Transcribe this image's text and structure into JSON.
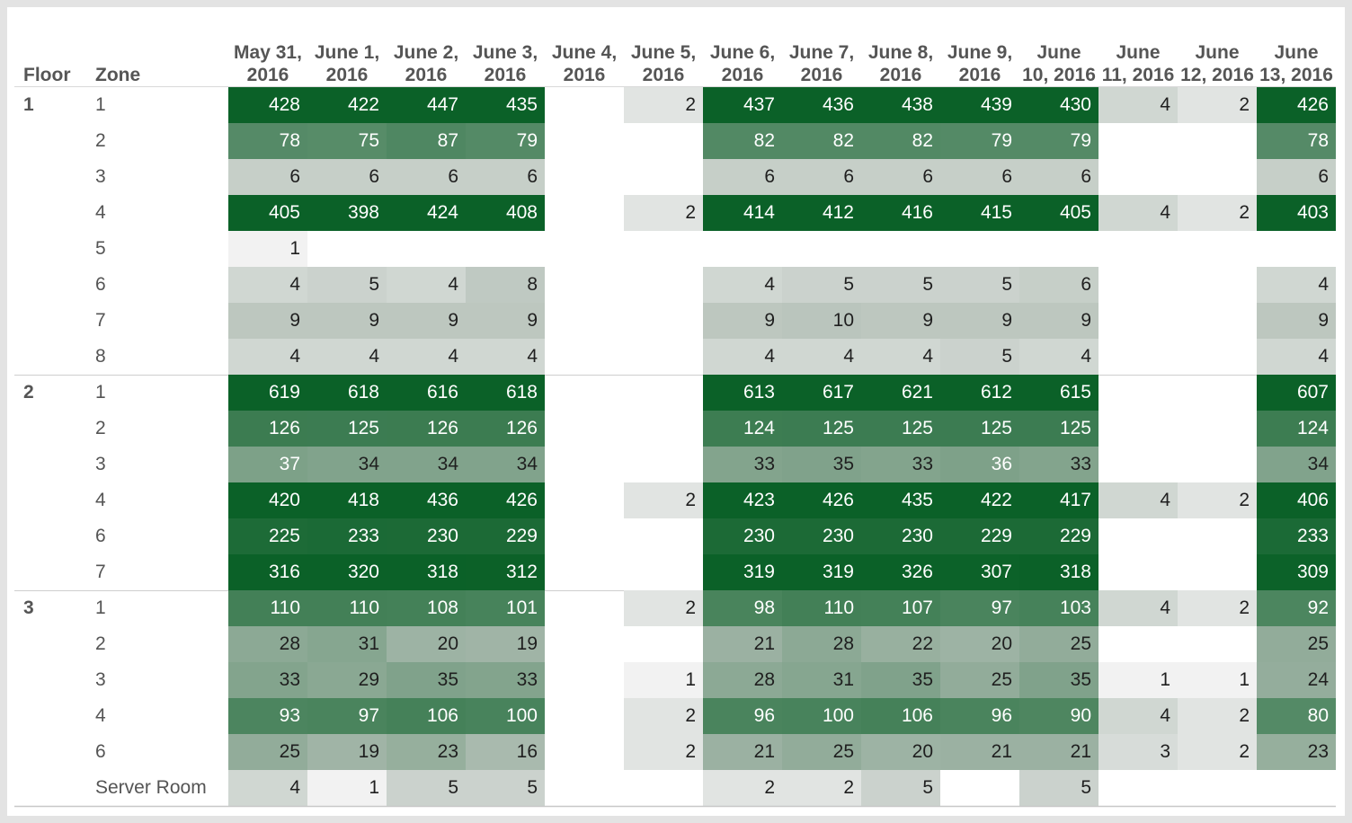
{
  "chart_data": {
    "type": "heatmap",
    "row_headers": [
      "Floor",
      "Zone"
    ],
    "columns": [
      [
        "May 31,",
        "2016"
      ],
      [
        "June 1,",
        "2016"
      ],
      [
        "June 2,",
        "2016"
      ],
      [
        "June 3,",
        "2016"
      ],
      [
        "June 4,",
        "2016"
      ],
      [
        "June 5,",
        "2016"
      ],
      [
        "June 6,",
        "2016"
      ],
      [
        "June 7,",
        "2016"
      ],
      [
        "June 8,",
        "2016"
      ],
      [
        "June 9,",
        "2016"
      ],
      [
        "June",
        "10, 2016"
      ],
      [
        "June",
        "11, 2016"
      ],
      [
        "June",
        "12, 2016"
      ],
      [
        "June",
        "13, 2016"
      ]
    ],
    "floors": [
      {
        "floor": "1",
        "zones": [
          {
            "zone": "1",
            "values": [
              428,
              422,
              447,
              435,
              null,
              2,
              437,
              436,
              438,
              439,
              430,
              4,
              2,
              426
            ]
          },
          {
            "zone": "2",
            "values": [
              78,
              75,
              87,
              79,
              null,
              null,
              82,
              82,
              82,
              79,
              79,
              null,
              null,
              78
            ]
          },
          {
            "zone": "3",
            "values": [
              6,
              6,
              6,
              6,
              null,
              null,
              6,
              6,
              6,
              6,
              6,
              null,
              null,
              6
            ]
          },
          {
            "zone": "4",
            "values": [
              405,
              398,
              424,
              408,
              null,
              2,
              414,
              412,
              416,
              415,
              405,
              4,
              2,
              403
            ]
          },
          {
            "zone": "5",
            "values": [
              1,
              null,
              null,
              null,
              null,
              null,
              null,
              null,
              null,
              null,
              null,
              null,
              null,
              null
            ]
          },
          {
            "zone": "6",
            "values": [
              4,
              5,
              4,
              8,
              null,
              null,
              4,
              5,
              5,
              5,
              6,
              null,
              null,
              4
            ]
          },
          {
            "zone": "7",
            "values": [
              9,
              9,
              9,
              9,
              null,
              null,
              9,
              10,
              9,
              9,
              9,
              null,
              null,
              9
            ]
          },
          {
            "zone": "8",
            "values": [
              4,
              4,
              4,
              4,
              null,
              null,
              4,
              4,
              4,
              5,
              4,
              null,
              null,
              4
            ]
          }
        ]
      },
      {
        "floor": "2",
        "zones": [
          {
            "zone": "1",
            "values": [
              619,
              618,
              616,
              618,
              null,
              null,
              613,
              617,
              621,
              612,
              615,
              null,
              null,
              607
            ]
          },
          {
            "zone": "2",
            "values": [
              126,
              125,
              126,
              126,
              null,
              null,
              124,
              125,
              125,
              125,
              125,
              null,
              null,
              124
            ]
          },
          {
            "zone": "3",
            "values": [
              37,
              34,
              34,
              34,
              null,
              null,
              33,
              35,
              33,
              36,
              33,
              null,
              null,
              34
            ]
          },
          {
            "zone": "4",
            "values": [
              420,
              418,
              436,
              426,
              null,
              2,
              423,
              426,
              435,
              422,
              417,
              4,
              2,
              406
            ]
          },
          {
            "zone": "6",
            "values": [
              225,
              233,
              230,
              229,
              null,
              null,
              230,
              230,
              230,
              229,
              229,
              null,
              null,
              233
            ]
          },
          {
            "zone": "7",
            "values": [
              316,
              320,
              318,
              312,
              null,
              null,
              319,
              319,
              326,
              307,
              318,
              null,
              null,
              309
            ]
          }
        ]
      },
      {
        "floor": "3",
        "zones": [
          {
            "zone": "1",
            "values": [
              110,
              110,
              108,
              101,
              null,
              2,
              98,
              110,
              107,
              97,
              103,
              4,
              2,
              92
            ]
          },
          {
            "zone": "2",
            "values": [
              28,
              31,
              20,
              19,
              null,
              null,
              21,
              28,
              22,
              20,
              25,
              null,
              null,
              25
            ]
          },
          {
            "zone": "3",
            "values": [
              33,
              29,
              35,
              33,
              null,
              1,
              28,
              31,
              35,
              25,
              35,
              1,
              1,
              24
            ]
          },
          {
            "zone": "4",
            "values": [
              93,
              97,
              106,
              100,
              null,
              2,
              96,
              100,
              106,
              96,
              90,
              4,
              2,
              80
            ]
          },
          {
            "zone": "6",
            "values": [
              25,
              19,
              23,
              16,
              null,
              2,
              21,
              25,
              20,
              21,
              21,
              3,
              2,
              23
            ]
          },
          {
            "zone": "Server Room",
            "values": [
              4,
              1,
              5,
              5,
              null,
              null,
              2,
              2,
              5,
              null,
              5,
              null,
              null,
              null
            ]
          }
        ]
      }
    ],
    "color_scale": {
      "low": "#f2f2f2",
      "mid": "#b3bfb6",
      "high": "#0b6128"
    }
  }
}
